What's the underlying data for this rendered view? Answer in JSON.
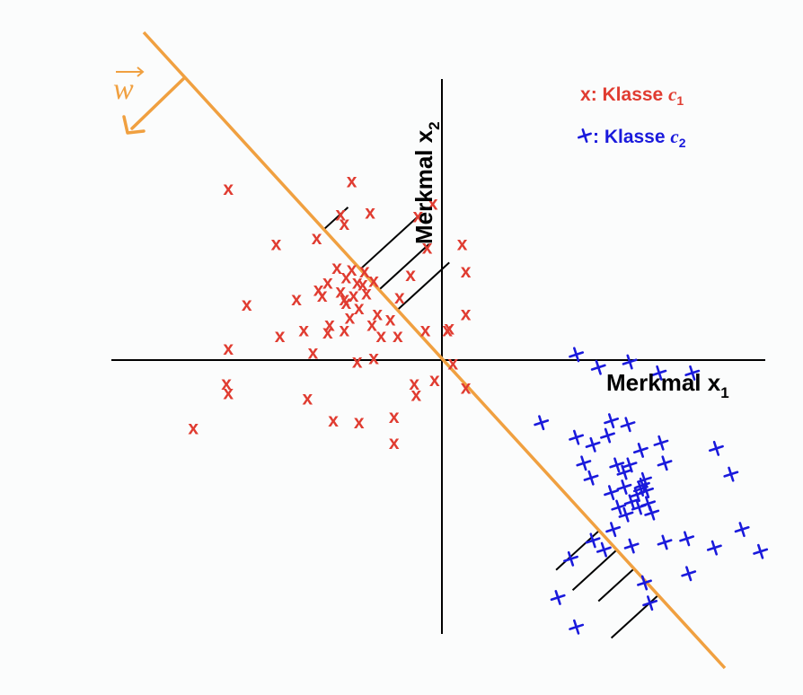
{
  "colors": {
    "class1": "#e03c31",
    "class2": "#1a1adc",
    "boundary": "#f0a040",
    "axis": "#000000",
    "background": "#fbfcfc"
  },
  "axes": {
    "x1_label": "Merkmal x",
    "x1_sub": "1",
    "x2_label": "Merkmal x",
    "x2_sub": "2"
  },
  "vector_label": "w",
  "legend": {
    "class1": {
      "marker": "x",
      "text": ": Klasse ",
      "var": "c",
      "sub": "1"
    },
    "class2": {
      "marker": "+",
      "text": ": Klasse ",
      "var": "c",
      "sub": "2"
    }
  },
  "class1_points": [
    [
      -11.6,
      9.3
    ],
    [
      -9,
      6.3
    ],
    [
      -10.6,
      3
    ],
    [
      -11.6,
      0.6
    ],
    [
      -8.8,
      1.3
    ],
    [
      -6.8,
      6.6
    ],
    [
      -4.9,
      9.7
    ],
    [
      -3.9,
      8
    ],
    [
      -5.3,
      7.4
    ],
    [
      -5.7,
      5
    ],
    [
      -5.5,
      3.7
    ],
    [
      -4.8,
      3.5
    ],
    [
      -4.6,
      4.2
    ],
    [
      -4.9,
      4.9
    ],
    [
      -5.3,
      3.3
    ],
    [
      -6.5,
      3.5
    ],
    [
      -5,
      2.3
    ],
    [
      -7.9,
      3.3
    ],
    [
      -7.5,
      1.6
    ],
    [
      -6.1,
      1.9
    ],
    [
      -5.2,
      3.1
    ],
    [
      -4.1,
      3.6
    ],
    [
      -4.3,
      4.1
    ],
    [
      -3.8,
      1.9
    ],
    [
      -2.8,
      2.2
    ],
    [
      -4.5,
      2.8
    ],
    [
      -3.5,
      2.5
    ],
    [
      -2.3,
      3.4
    ],
    [
      -4.2,
      4.8
    ],
    [
      -5.2,
      4.5
    ],
    [
      -6.2,
      4.2
    ],
    [
      -6.2,
      1.5
    ],
    [
      -3.7,
      4.3
    ],
    [
      -2.4,
      1.3
    ],
    [
      -7,
      0.4
    ],
    [
      -5.3,
      1.6
    ],
    [
      -3.3,
      1.3
    ],
    [
      -1.7,
      4.6
    ],
    [
      -1.3,
      7.8
    ],
    [
      -5.5,
      7.9
    ],
    [
      -0.9,
      1.6
    ],
    [
      -3.7,
      0.1
    ],
    [
      -4.6,
      -0.1
    ],
    [
      0.4,
      1.7
    ],
    [
      -1.5,
      -1.3
    ],
    [
      -13.5,
      -3.7
    ],
    [
      -7.3,
      -2.1
    ],
    [
      -4.5,
      -3.4
    ],
    [
      -2.6,
      -4.5
    ],
    [
      -11.6,
      -1.8
    ],
    [
      -0.4,
      -1.1
    ],
    [
      1.1,
      6.3
    ],
    [
      1.3,
      4.8
    ],
    [
      1.3,
      2.5
    ],
    [
      1.3,
      -1.5
    ],
    [
      -11.7,
      -1.3
    ],
    [
      -5.9,
      -3.3
    ],
    [
      -1.4,
      -1.9
    ],
    [
      0.3,
      1.6
    ],
    [
      0.6,
      -0.2
    ],
    [
      -2.6,
      -3.1
    ],
    [
      -0.5,
      8.5
    ],
    [
      -6.7,
      3.8
    ],
    [
      -0.8,
      6.1
    ]
  ],
  "class2_points": [
    [
      7.3,
      0.3
    ],
    [
      8.5,
      -0.4
    ],
    [
      10.2,
      -0.1
    ],
    [
      11.8,
      -0.7
    ],
    [
      13.6,
      -0.7
    ],
    [
      10.1,
      -3.5
    ],
    [
      9.2,
      -3.3
    ],
    [
      9,
      -4.1
    ],
    [
      8.2,
      -4.6
    ],
    [
      7.3,
      -4.2
    ],
    [
      7.7,
      -5.6
    ],
    [
      8.1,
      -6.4
    ],
    [
      9.5,
      -5.7
    ],
    [
      10.2,
      -5.7
    ],
    [
      10.8,
      -4.9
    ],
    [
      11.9,
      -4.5
    ],
    [
      12.1,
      -5.6
    ],
    [
      11,
      -6.5
    ],
    [
      9.9,
      -6.9
    ],
    [
      9.2,
      -7.2
    ],
    [
      10.3,
      -7.7
    ],
    [
      11.2,
      -7.8
    ],
    [
      11.4,
      -8.3
    ],
    [
      10.7,
      -8
    ],
    [
      10,
      -8.4
    ],
    [
      9.6,
      -8
    ],
    [
      9.3,
      -9.2
    ],
    [
      8.2,
      -9.8
    ],
    [
      8.8,
      -10.3
    ],
    [
      10.3,
      -10.1
    ],
    [
      12.1,
      -9.9
    ],
    [
      13.3,
      -9.7
    ],
    [
      14.8,
      -10.2
    ],
    [
      13.4,
      -11.6
    ],
    [
      11,
      -12.1
    ],
    [
      10.9,
      -6.8
    ],
    [
      10.6,
      -7.3
    ],
    [
      10.8,
      -7
    ],
    [
      11.1,
      -7.1
    ],
    [
      7,
      -10.8
    ],
    [
      6.3,
      -12.9
    ],
    [
      11.3,
      -13.2
    ],
    [
      7.3,
      -14.5
    ],
    [
      5.4,
      -3.4
    ],
    [
      14.9,
      -4.8
    ],
    [
      15.7,
      -6.2
    ],
    [
      16.3,
      -9.2
    ],
    [
      17.3,
      -10.4
    ],
    [
      9.9,
      -6.1
    ]
  ],
  "projections": [
    [
      -5.1,
      8.3
    ],
    [
      -1.3,
      7.8
    ],
    [
      -0.7,
      6.3
    ],
    [
      0.4,
      5.3
    ],
    [
      6.2,
      -11.4
    ],
    [
      7.1,
      -12.5
    ],
    [
      8.5,
      -13.1
    ],
    [
      9.2,
      -15.1
    ]
  ]
}
